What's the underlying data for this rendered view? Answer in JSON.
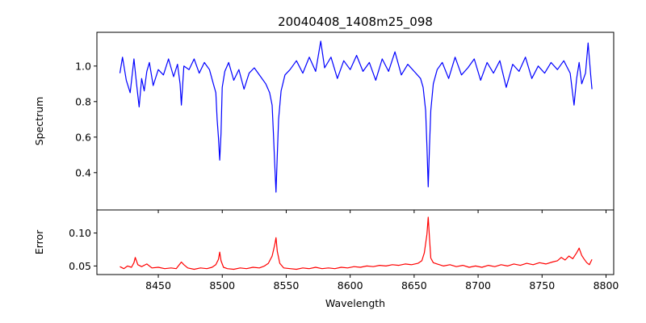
{
  "chart_data": [
    {
      "type": "line",
      "title": "20040408_1408m25_098",
      "xlabel": "",
      "ylabel": "Spectrum",
      "xlim": [
        8402,
        8806
      ],
      "ylim": [
        0.19,
        1.19
      ],
      "xticks": [
        8450,
        8500,
        8550,
        8600,
        8650,
        8700,
        8750,
        8800
      ],
      "yticks": [
        {
          "value": 0.4,
          "label": "0.4"
        },
        {
          "value": 0.6,
          "label": "0.6"
        },
        {
          "value": 0.8,
          "label": "0.8"
        },
        {
          "value": 1.0,
          "label": "1.0"
        }
      ],
      "x_tick_labels_shown": false,
      "grid": false,
      "series": [
        {
          "color": "#0000ff",
          "x": [
            8420,
            8422,
            8425,
            8428,
            8431,
            8433,
            8435,
            8437,
            8439,
            8441,
            8443,
            8446,
            8450,
            8454,
            8458,
            8462,
            8465,
            8467,
            8468,
            8470,
            8474,
            8478,
            8482,
            8486,
            8490,
            8493,
            8495,
            8496,
            8497,
            8498,
            8499,
            8500,
            8502,
            8505,
            8509,
            8513,
            8517,
            8521,
            8525,
            8530,
            8534,
            8537,
            8539,
            8540,
            8541,
            8542,
            8543,
            8544,
            8546,
            8549,
            8553,
            8558,
            8563,
            8568,
            8573,
            8577,
            8580,
            8585,
            8590,
            8595,
            8600,
            8605,
            8610,
            8615,
            8620,
            8625,
            8630,
            8635,
            8640,
            8645,
            8650,
            8655,
            8657,
            8659,
            8660,
            8661,
            8662,
            8663,
            8665,
            8668,
            8672,
            8677,
            8682,
            8687,
            8692,
            8697,
            8702,
            8707,
            8712,
            8717,
            8722,
            8727,
            8732,
            8737,
            8742,
            8747,
            8752,
            8757,
            8762,
            8767,
            8772,
            8775,
            8777,
            8779,
            8781,
            8784,
            8786,
            8788,
            8789
          ],
          "y": [
            0.96,
            1.05,
            0.92,
            0.85,
            1.04,
            0.9,
            0.77,
            0.93,
            0.86,
            0.97,
            1.02,
            0.89,
            0.98,
            0.95,
            1.04,
            0.94,
            1.01,
            0.9,
            0.78,
            1.0,
            0.98,
            1.04,
            0.96,
            1.02,
            0.98,
            0.9,
            0.85,
            0.7,
            0.6,
            0.47,
            0.62,
            0.88,
            0.97,
            1.02,
            0.92,
            0.98,
            0.87,
            0.96,
            0.99,
            0.94,
            0.9,
            0.85,
            0.78,
            0.62,
            0.45,
            0.29,
            0.5,
            0.7,
            0.86,
            0.95,
            0.98,
            1.03,
            0.96,
            1.05,
            0.97,
            1.14,
            0.99,
            1.05,
            0.93,
            1.03,
            0.98,
            1.06,
            0.97,
            1.02,
            0.92,
            1.04,
            0.97,
            1.08,
            0.95,
            1.01,
            0.97,
            0.93,
            0.88,
            0.75,
            0.55,
            0.32,
            0.55,
            0.75,
            0.9,
            0.98,
            1.02,
            0.93,
            1.05,
            0.95,
            0.99,
            1.04,
            0.92,
            1.02,
            0.96,
            1.03,
            0.88,
            1.01,
            0.97,
            1.05,
            0.93,
            1.0,
            0.96,
            1.02,
            0.98,
            1.03,
            0.96,
            0.78,
            0.93,
            1.02,
            0.9,
            0.96,
            1.13,
            0.95,
            0.87
          ]
        }
      ]
    },
    {
      "type": "line",
      "title": "",
      "xlabel": "Wavelength",
      "ylabel": "Error",
      "xlim": [
        8402,
        8806
      ],
      "ylim": [
        0.037,
        0.135
      ],
      "xticks": [
        {
          "value": 8450,
          "label": "8450"
        },
        {
          "value": 8500,
          "label": "8500"
        },
        {
          "value": 8550,
          "label": "8550"
        },
        {
          "value": 8600,
          "label": "8600"
        },
        {
          "value": 8650,
          "label": "8650"
        },
        {
          "value": 8700,
          "label": "8700"
        },
        {
          "value": 8750,
          "label": "8750"
        },
        {
          "value": 8800,
          "label": "8800"
        }
      ],
      "yticks": [
        {
          "value": 0.05,
          "label": "0.05"
        },
        {
          "value": 0.1,
          "label": "0.10"
        }
      ],
      "x_tick_labels_shown": true,
      "grid": false,
      "series": [
        {
          "color": "#ff0000",
          "x": [
            8420,
            8423,
            8426,
            8429,
            8431,
            8432,
            8434,
            8437,
            8441,
            8445,
            8450,
            8455,
            8460,
            8464,
            8466,
            8468,
            8470,
            8473,
            8478,
            8483,
            8488,
            8492,
            8495,
            8497,
            8498,
            8499,
            8501,
            8504,
            8509,
            8514,
            8519,
            8524,
            8529,
            8533,
            8536,
            8539,
            8541,
            8542,
            8543,
            8545,
            8548,
            8553,
            8558,
            8563,
            8568,
            8573,
            8578,
            8583,
            8588,
            8593,
            8598,
            8603,
            8608,
            8613,
            8618,
            8623,
            8628,
            8633,
            8638,
            8643,
            8648,
            8653,
            8656,
            8658,
            8660,
            8661,
            8662,
            8663,
            8665,
            8668,
            8673,
            8678,
            8683,
            8688,
            8693,
            8698,
            8703,
            8708,
            8713,
            8718,
            8723,
            8728,
            8733,
            8738,
            8743,
            8748,
            8753,
            8758,
            8762,
            8765,
            8768,
            8771,
            8774,
            8777,
            8779,
            8781,
            8783,
            8785,
            8787,
            8789
          ],
          "y": [
            0.049,
            0.046,
            0.05,
            0.048,
            0.055,
            0.063,
            0.052,
            0.049,
            0.053,
            0.047,
            0.048,
            0.046,
            0.047,
            0.046,
            0.051,
            0.056,
            0.052,
            0.047,
            0.045,
            0.047,
            0.046,
            0.048,
            0.052,
            0.06,
            0.071,
            0.058,
            0.048,
            0.046,
            0.045,
            0.047,
            0.046,
            0.048,
            0.047,
            0.05,
            0.054,
            0.065,
            0.082,
            0.093,
            0.072,
            0.054,
            0.047,
            0.046,
            0.045,
            0.047,
            0.046,
            0.048,
            0.046,
            0.047,
            0.046,
            0.048,
            0.047,
            0.049,
            0.048,
            0.05,
            0.049,
            0.051,
            0.05,
            0.052,
            0.051,
            0.053,
            0.052,
            0.054,
            0.058,
            0.07,
            0.098,
            0.124,
            0.092,
            0.062,
            0.055,
            0.053,
            0.05,
            0.052,
            0.049,
            0.051,
            0.048,
            0.05,
            0.048,
            0.051,
            0.049,
            0.052,
            0.05,
            0.053,
            0.051,
            0.054,
            0.052,
            0.055,
            0.053,
            0.056,
            0.058,
            0.063,
            0.059,
            0.065,
            0.061,
            0.07,
            0.077,
            0.066,
            0.06,
            0.055,
            0.052,
            0.06
          ]
        }
      ]
    }
  ]
}
